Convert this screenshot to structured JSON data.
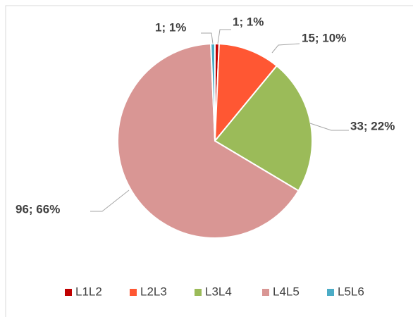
{
  "chart_data": {
    "type": "pie",
    "categories": [
      "L1L2",
      "L2L3",
      "L3L4",
      "L4L5",
      "L5L6"
    ],
    "values": [
      1,
      15,
      33,
      96,
      1
    ],
    "value_labels": [
      "1; 1%",
      "15; 10%",
      "33; 22%",
      "96; 66%",
      "1; 1%"
    ],
    "colors": [
      "#c00000",
      "#ff5733",
      "#9bbb59",
      "#d99694",
      "#4bacc6"
    ],
    "legend": "bottom"
  }
}
